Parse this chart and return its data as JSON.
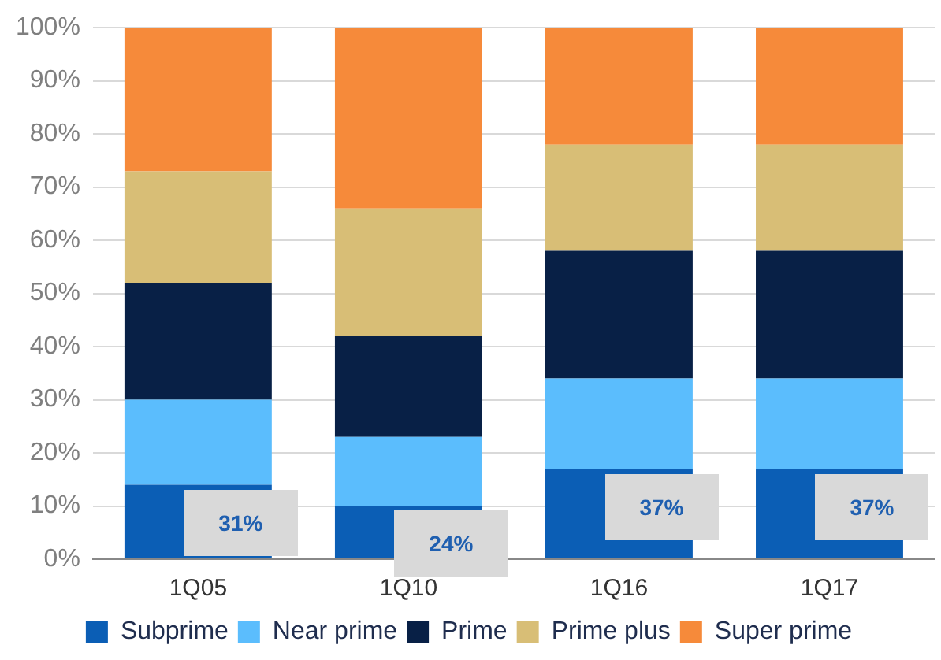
{
  "chart_data": {
    "type": "bar",
    "stacked": true,
    "categories": [
      "1Q05",
      "1Q10",
      "1Q16",
      "1Q17"
    ],
    "series": [
      {
        "name": "Subprime",
        "color": "#0b5eb5",
        "values": [
          14,
          10,
          17,
          17
        ]
      },
      {
        "name": "Near prime",
        "color": "#5bbdfd",
        "values": [
          16,
          13,
          17,
          17
        ]
      },
      {
        "name": "Prime",
        "color": "#082046",
        "values": [
          22,
          19,
          24,
          24
        ]
      },
      {
        "name": "Prime plus",
        "color": "#d8be76",
        "values": [
          21,
          24,
          20,
          20
        ]
      },
      {
        "name": "Super prime",
        "color": "#f68a3a",
        "values": [
          27,
          34,
          22,
          22
        ]
      }
    ],
    "ylim": [
      0,
      100
    ],
    "yticks": [
      {
        "value": 0,
        "label": "0%"
      },
      {
        "value": 10,
        "label": "10%"
      },
      {
        "value": 20,
        "label": "20%"
      },
      {
        "value": 30,
        "label": "30%"
      },
      {
        "value": 40,
        "label": "40%"
      },
      {
        "value": 50,
        "label": "50%"
      },
      {
        "value": 60,
        "label": "60%"
      },
      {
        "value": 70,
        "label": "70%"
      },
      {
        "value": 80,
        "label": "80%"
      },
      {
        "value": 90,
        "label": "90%"
      },
      {
        "value": 100,
        "label": "100%"
      }
    ],
    "grid": "y",
    "legend": "bottom",
    "annotations": [
      "31%",
      "24%",
      "37%",
      "37%"
    ]
  }
}
